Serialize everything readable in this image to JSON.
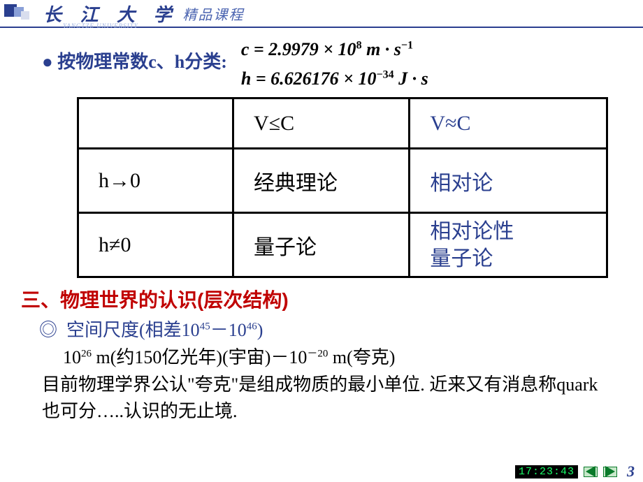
{
  "header": {
    "university": "长 江 大 学",
    "subtitle": "精品课程",
    "pinyin": "YANGTZE UNIVERSITY"
  },
  "classify": {
    "bullet": "● 按物理常数c、h分类:",
    "c_formula": "c = 2.9979 × 10⁸ m · s⁻¹",
    "h_formula": "h = 6.626176 × 10⁻³⁴ J · s"
  },
  "table": {
    "rows": [
      [
        "",
        "V≤C",
        "V≈C"
      ],
      [
        "h→0",
        "经典理论",
        "相对论"
      ],
      [
        "h≠0",
        "量子论",
        "相对论性\n量子论"
      ]
    ],
    "col2_color": "#2a3f8f"
  },
  "section3": {
    "title": "三、物理世界的认识(层次结构)",
    "spatial_label": "◎  空间尺度(相差10⁴⁵－10⁴⁶)",
    "range_line": "10²⁶ m(约150亿光年)(宇宙)－10⁻²⁰ m(夸克)",
    "para": "目前物理学界公认\"夸克\"是组成物质的最小单位. 近来又有消息称quark 也可分…..认识的无止境."
  },
  "footer": {
    "clock": "17:23:43",
    "page": "3"
  },
  "colors": {
    "brand_blue": "#2a3f8f",
    "red": "#c00000",
    "clock_green": "#19ff6a",
    "nav_green": "#0a7a2a"
  }
}
